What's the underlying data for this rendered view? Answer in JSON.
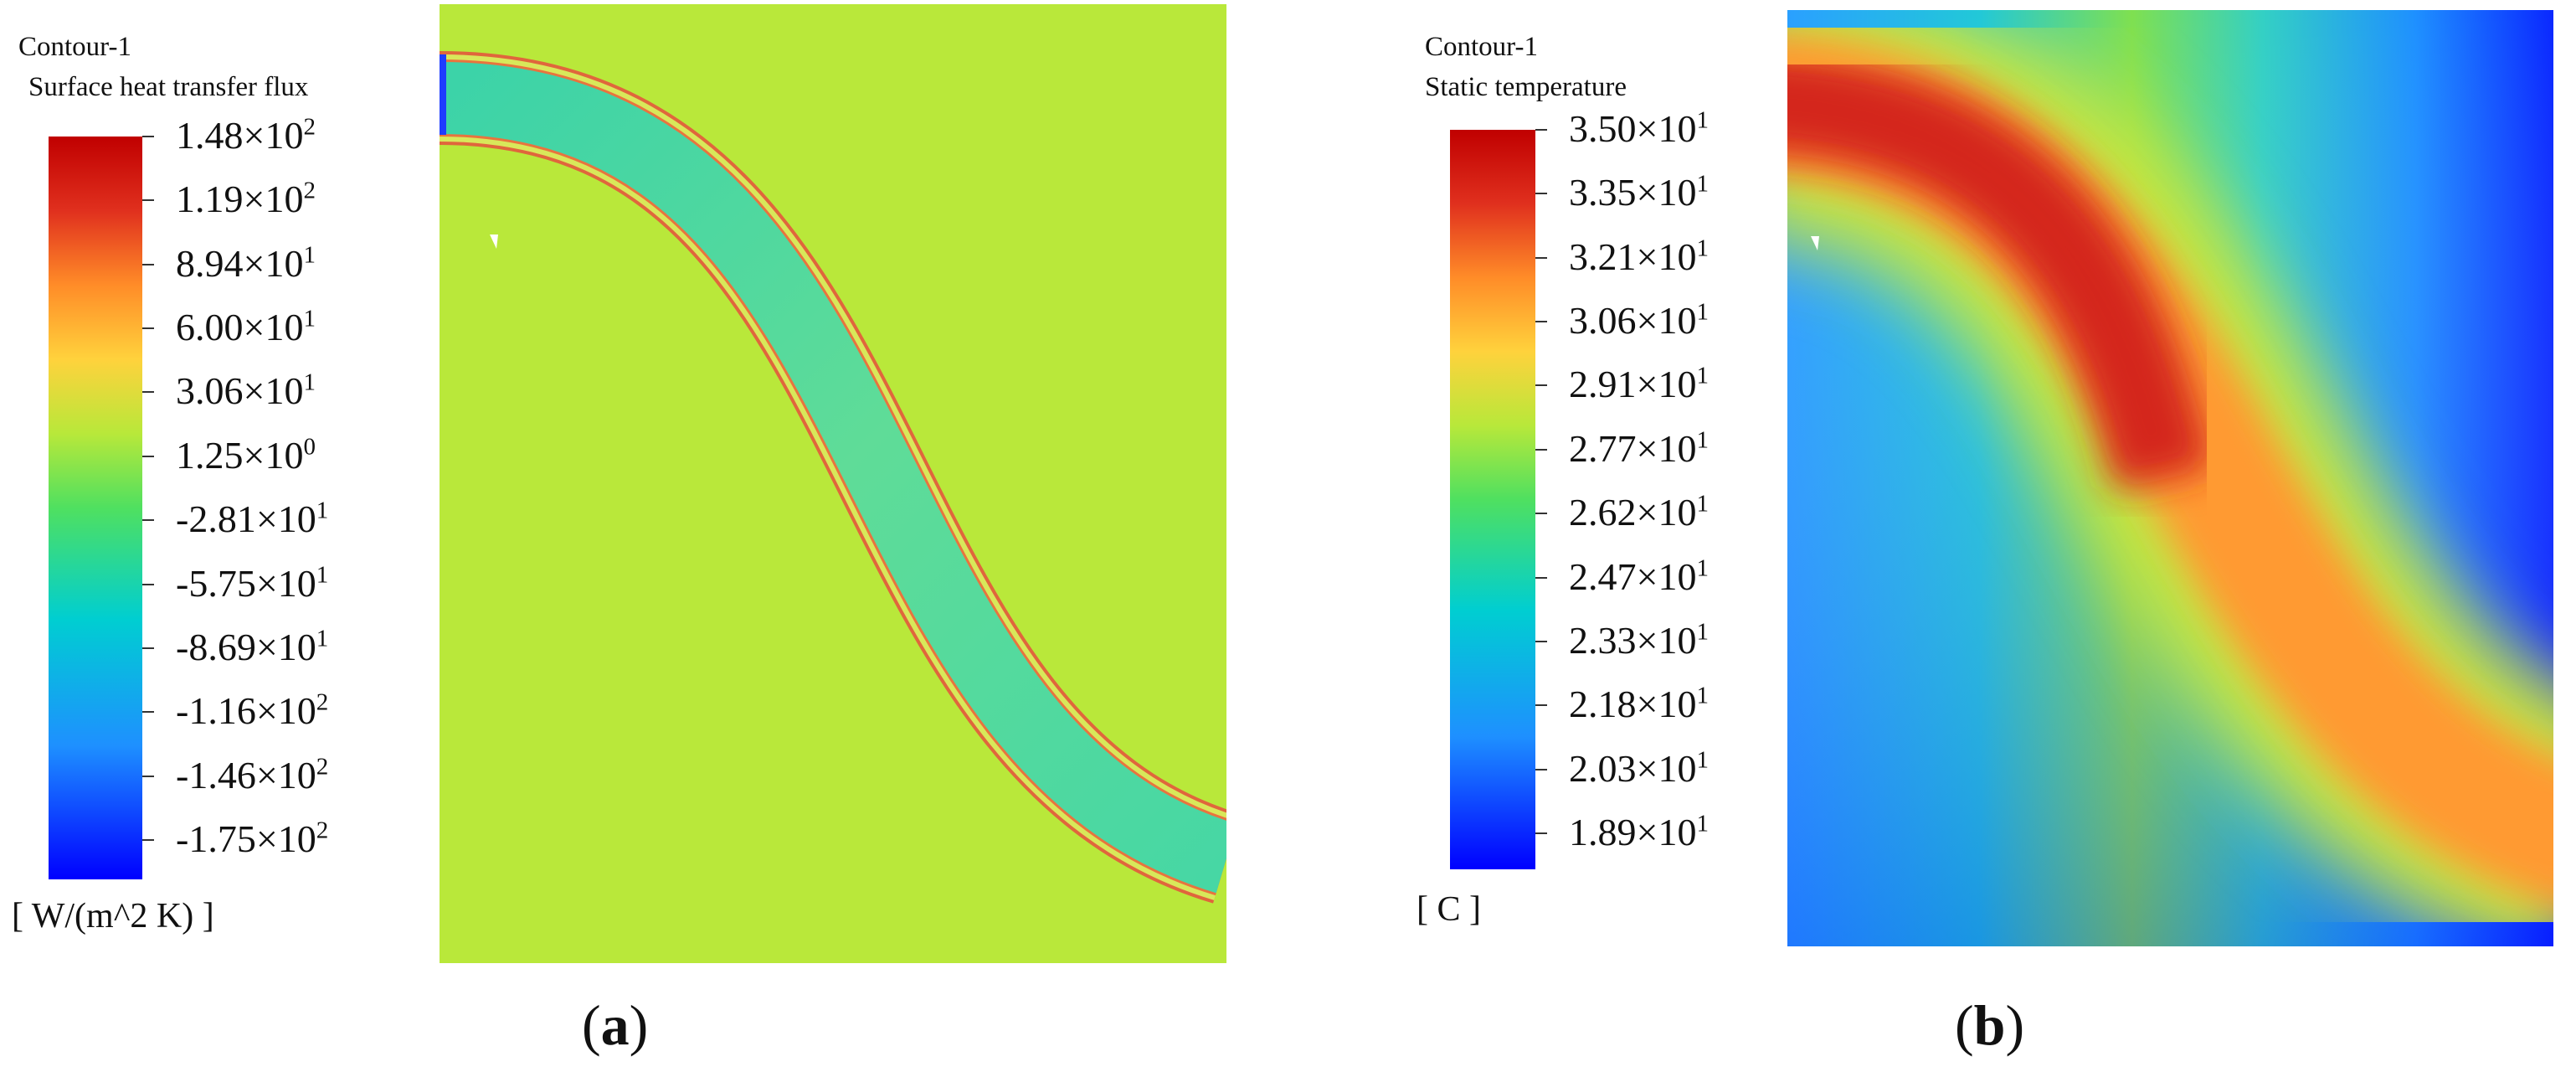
{
  "panel_a": {
    "contour_name": "Contour-1",
    "variable": "Surface heat transfer flux",
    "unit": "[ W/(m^2 K) ]",
    "caption_letter": "a",
    "ticks": [
      {
        "mantissa": "1.48",
        "exponent": "2"
      },
      {
        "mantissa": "1.19",
        "exponent": "2"
      },
      {
        "mantissa": "8.94",
        "exponent": "1"
      },
      {
        "mantissa": "6.00",
        "exponent": "1"
      },
      {
        "mantissa": "3.06",
        "exponent": "1"
      },
      {
        "mantissa": "1.25",
        "exponent": "0"
      },
      {
        "mantissa": "-2.81",
        "exponent": "1"
      },
      {
        "mantissa": "-5.75",
        "exponent": "1"
      },
      {
        "mantissa": "-8.69",
        "exponent": "1"
      },
      {
        "mantissa": "-1.16",
        "exponent": "2"
      },
      {
        "mantissa": "-1.46",
        "exponent": "2"
      },
      {
        "mantissa": "-1.75",
        "exponent": "2"
      }
    ]
  },
  "panel_b": {
    "contour_name": "Contour-1",
    "variable": "Static temperature",
    "unit": "[ C ]",
    "caption_letter": "b",
    "ticks": [
      {
        "mantissa": "3.50",
        "exponent": "1"
      },
      {
        "mantissa": "3.35",
        "exponent": "1"
      },
      {
        "mantissa": "3.21",
        "exponent": "1"
      },
      {
        "mantissa": "3.06",
        "exponent": "1"
      },
      {
        "mantissa": "2.91",
        "exponent": "1"
      },
      {
        "mantissa": "2.77",
        "exponent": "1"
      },
      {
        "mantissa": "2.62",
        "exponent": "1"
      },
      {
        "mantissa": "2.47",
        "exponent": "1"
      },
      {
        "mantissa": "2.33",
        "exponent": "1"
      },
      {
        "mantissa": "2.18",
        "exponent": "1"
      },
      {
        "mantissa": "2.03",
        "exponent": "1"
      },
      {
        "mantissa": "1.89",
        "exponent": "1"
      }
    ]
  },
  "times_symbol": "×10",
  "caption_open": "(",
  "caption_close": ")",
  "colors": {
    "colormap": [
      "#0000ff",
      "#1e90ff",
      "#00ced1",
      "#4fe060",
      "#b8e83a",
      "#ffd23c",
      "#ff8c28",
      "#e0301e",
      "#c00000"
    ],
    "heatflux_background": "#b9e83a",
    "pipe_core": "#4fd9a0",
    "pipe_edge": "#e2643a"
  }
}
